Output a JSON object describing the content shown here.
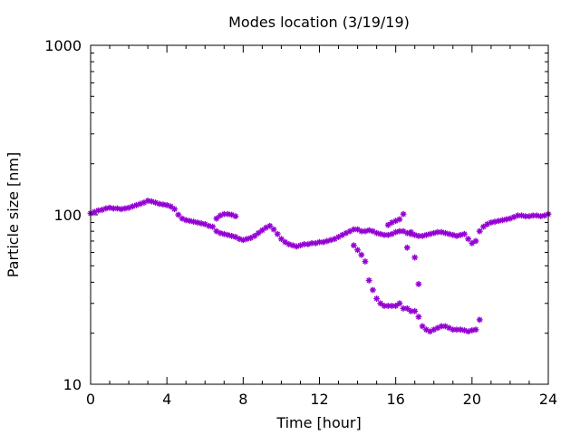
{
  "chart_data": {
    "type": "scatter",
    "title": "Modes location (3/19/19)",
    "xlabel": "Time [hour]",
    "ylabel": "Particle size [nm]",
    "xlim": [
      0,
      24
    ],
    "ylim": [
      10,
      1000
    ],
    "yscale": "log",
    "xticks": [
      0,
      4,
      8,
      12,
      16,
      20,
      24
    ],
    "xtick_labels": [
      "0",
      "4",
      "8",
      "12",
      "16",
      "20",
      "24"
    ],
    "yticks": [
      10,
      100,
      1000
    ],
    "ytick_labels": [
      "10",
      "100",
      "1000"
    ],
    "grid": false,
    "legend": "none",
    "marker_color": "#9400d3",
    "series": [
      {
        "x": [
          0.0,
          0.2,
          0.4,
          0.6,
          0.8,
          1.0,
          1.2,
          1.4,
          1.6,
          1.8,
          2.0,
          2.2,
          2.4,
          2.6,
          2.8,
          3.0,
          3.2,
          3.4,
          3.6,
          3.8,
          4.0,
          4.2,
          4.4,
          4.6,
          4.8,
          5.0,
          5.2,
          5.4,
          5.6,
          5.8,
          6.0,
          6.2,
          6.4,
          6.6,
          6.8,
          7.0,
          7.2,
          7.4,
          7.6,
          7.8,
          8.0,
          8.2,
          8.4,
          8.6,
          8.8,
          9.0,
          9.2,
          9.4,
          9.6,
          9.8,
          10.0,
          10.2,
          10.4,
          10.6,
          10.8,
          11.0,
          11.2,
          11.4,
          11.6,
          11.8,
          12.0,
          12.2,
          12.4,
          12.6,
          12.8,
          13.0,
          13.2,
          13.4,
          13.6,
          13.8,
          14.0,
          14.2,
          14.4,
          14.6,
          14.8,
          15.0,
          15.2,
          15.4,
          15.6,
          15.8,
          16.0,
          16.2,
          16.4,
          16.6,
          16.8,
          17.0,
          17.2,
          17.4,
          17.6,
          17.8,
          18.0,
          18.2,
          18.4,
          18.6,
          18.8,
          19.0,
          19.2,
          19.4,
          19.6,
          19.8,
          20.0,
          20.2,
          20.4,
          20.6,
          20.8,
          21.0,
          21.2,
          21.4,
          21.6,
          21.8,
          22.0,
          22.2,
          22.4,
          22.6,
          22.8,
          23.0,
          23.2,
          23.4,
          23.6,
          23.8,
          24.0
        ],
        "y": [
          102,
          104,
          106,
          107,
          109,
          110,
          109,
          109,
          108,
          109,
          110,
          112,
          114,
          116,
          118,
          121,
          120,
          118,
          116,
          115,
          114,
          112,
          108,
          100,
          95,
          93,
          92,
          91,
          90,
          89,
          88,
          86,
          85,
          80,
          78,
          77,
          76,
          75,
          74,
          72,
          71,
          72,
          73,
          75,
          78,
          81,
          84,
          86,
          82,
          77,
          72,
          69,
          67,
          66,
          65,
          66,
          67,
          67,
          68,
          68,
          69,
          69,
          70,
          71,
          72,
          74,
          76,
          78,
          80,
          82,
          82,
          80,
          80,
          81,
          80,
          78,
          77,
          76,
          76,
          77,
          79,
          80,
          80,
          78,
          77,
          76,
          75,
          75,
          76,
          77,
          78,
          79,
          79,
          78,
          77,
          76,
          75,
          76,
          77,
          72,
          68,
          70,
          80,
          85,
          88,
          90,
          91,
          92,
          93,
          94,
          95,
          97,
          99,
          99,
          98,
          98,
          99,
          99,
          98,
          99,
          101
        ]
      },
      {
        "x": [
          6.6,
          6.8,
          7.0,
          7.2,
          7.4,
          7.6
        ],
        "y": [
          95,
          99,
          101,
          101,
          100,
          98
        ]
      },
      {
        "x": [
          13.8,
          14.0,
          14.2,
          14.4,
          14.6,
          14.8,
          15.0,
          15.2,
          15.4,
          15.6,
          15.8,
          16.0,
          16.2,
          16.4,
          16.6,
          16.8,
          17.0,
          17.2,
          17.4,
          17.6,
          17.8,
          18.0,
          18.2,
          18.4,
          18.6,
          18.8,
          19.0,
          19.2,
          19.4,
          19.6,
          19.8,
          20.0,
          20.2,
          20.4
        ],
        "y": [
          66,
          62,
          58,
          53,
          41,
          36,
          32,
          30,
          29,
          29,
          29,
          29,
          30,
          28,
          28,
          27,
          27,
          25,
          22,
          21,
          20.5,
          21,
          21.5,
          22,
          22,
          21.5,
          21,
          21,
          21,
          20.8,
          20.5,
          20.8,
          21,
          24
        ]
      },
      {
        "x": [
          15.6,
          15.8,
          16.0,
          16.2,
          16.4,
          16.6,
          16.8,
          17.0,
          17.2
        ],
        "y": [
          87,
          90,
          92,
          94,
          101,
          64,
          79,
          56,
          39
        ]
      }
    ]
  }
}
